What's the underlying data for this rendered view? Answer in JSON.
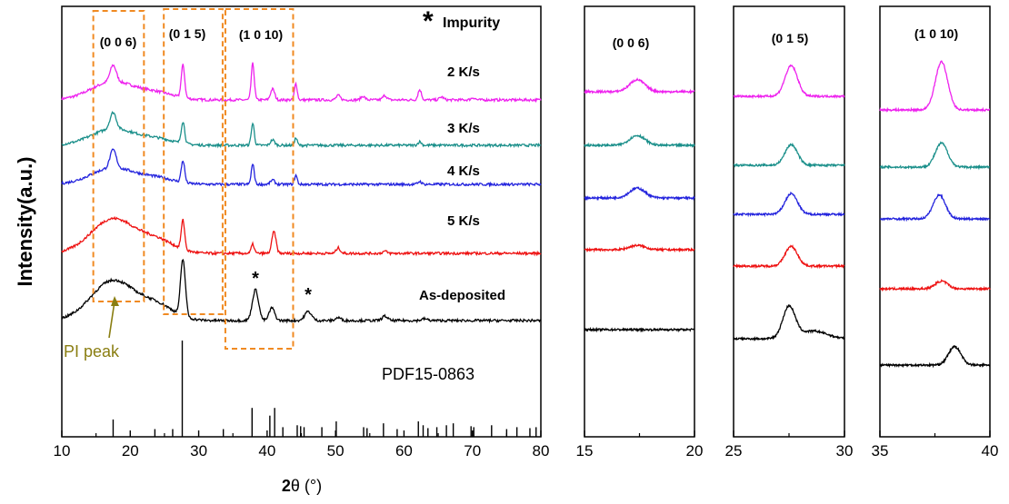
{
  "chart_data": [
    {
      "type": "line",
      "panel": "main",
      "xlabel": "2θ (°)",
      "ylabel": "Intensity(a.u.)",
      "xlim": [
        10,
        80
      ],
      "xticks": [
        "10",
        "20",
        "30",
        "40",
        "50",
        "60",
        "70",
        "80"
      ],
      "legend_text": "Impurity",
      "legend_symbol": "*",
      "peak_labels": [
        "(0 0 6)",
        "(0 1 5)",
        "(1 0 10)"
      ],
      "annotation": "PI peak",
      "impurity_marks": [
        {
          "x": 38.3,
          "text": "*"
        },
        {
          "x": 46.0,
          "text": "*"
        }
      ],
      "reference_label": "PDF15-0863",
      "series": [
        {
          "name": "2 K/s",
          "color": "#ee22ee",
          "baseline": 0.3,
          "broad": 0.5,
          "peaks": [
            [
              17.5,
              0.45,
              0.45
            ],
            [
              27.7,
              0.9,
              0.25
            ],
            [
              37.9,
              1.0,
              0.22
            ],
            [
              40.8,
              0.3,
              0.3
            ],
            [
              44.2,
              0.45,
              0.2
            ],
            [
              50.4,
              0.12,
              0.3
            ],
            [
              54.0,
              0.1,
              0.3
            ],
            [
              57.2,
              0.12,
              0.3
            ],
            [
              62.3,
              0.28,
              0.25
            ],
            [
              65.5,
              0.08,
              0.3
            ],
            [
              70.1,
              0.06,
              0.3
            ]
          ]
        },
        {
          "name": "3 K/s",
          "color": "#1a8f8a",
          "baseline": 0.3,
          "broad": 0.45,
          "peaks": [
            [
              17.5,
              0.45,
              0.45
            ],
            [
              27.7,
              0.6,
              0.25
            ],
            [
              37.9,
              0.6,
              0.22
            ],
            [
              40.8,
              0.15,
              0.3
            ],
            [
              44.2,
              0.2,
              0.2
            ],
            [
              62.3,
              0.1,
              0.25
            ]
          ]
        },
        {
          "name": "4 K/s",
          "color": "#2323dd",
          "baseline": 0.3,
          "broad": 0.45,
          "peaks": [
            [
              17.5,
              0.5,
              0.45
            ],
            [
              27.7,
              0.6,
              0.25
            ],
            [
              37.9,
              0.55,
              0.22
            ],
            [
              40.8,
              0.12,
              0.3
            ],
            [
              44.2,
              0.25,
              0.2
            ],
            [
              62.3,
              0.08,
              0.25
            ]
          ]
        },
        {
          "name": "5 K/s",
          "color": "#ee1111",
          "baseline": 0.3,
          "broad": 0.95,
          "peaks": [
            [
              27.7,
              0.8,
              0.25
            ],
            [
              37.9,
              0.25,
              0.22
            ],
            [
              41.0,
              0.6,
              0.3
            ],
            [
              50.4,
              0.15,
              0.3
            ],
            [
              57.2,
              0.06,
              0.3
            ]
          ]
        },
        {
          "name": "As-deposited",
          "color": "#000000",
          "baseline": 0.3,
          "broad": 1.1,
          "peaks": [
            [
              27.7,
              1.55,
              0.35
            ],
            [
              38.3,
              0.85,
              0.45
            ],
            [
              40.7,
              0.35,
              0.4
            ],
            [
              46.0,
              0.25,
              0.5
            ],
            [
              50.4,
              0.08,
              0.4
            ],
            [
              57.2,
              0.12,
              0.4
            ],
            [
              63.0,
              0.05,
              0.4
            ]
          ]
        }
      ],
      "reference_sticks": [
        [
          17.5,
          0.18
        ],
        [
          23.6,
          0.08
        ],
        [
          26.2,
          0.08
        ],
        [
          27.6,
          1.0
        ],
        [
          33.6,
          0.08
        ],
        [
          37.8,
          0.3
        ],
        [
          40.4,
          0.22
        ],
        [
          41.1,
          0.3
        ],
        [
          42.3,
          0.1
        ],
        [
          44.4,
          0.12
        ],
        [
          44.9,
          0.11
        ],
        [
          45.4,
          0.1
        ],
        [
          48.0,
          0.1
        ],
        [
          50.1,
          0.16
        ],
        [
          54.1,
          0.1
        ],
        [
          54.6,
          0.09
        ],
        [
          57.0,
          0.14
        ],
        [
          59.0,
          0.08
        ],
        [
          62.1,
          0.16
        ],
        [
          62.8,
          0.12
        ],
        [
          63.5,
          0.09
        ],
        [
          64.8,
          0.1
        ],
        [
          66.2,
          0.12
        ],
        [
          67.2,
          0.14
        ],
        [
          69.8,
          0.11
        ],
        [
          70.2,
          0.1
        ],
        [
          72.8,
          0.12
        ],
        [
          75.0,
          0.08
        ],
        [
          76.5,
          0.1
        ],
        [
          78.4,
          0.09
        ],
        [
          79.3,
          0.1
        ]
      ]
    },
    {
      "type": "line",
      "panel": "zoom-006",
      "title": "(0 0 6)",
      "xlim": [
        15,
        20
      ],
      "xticks": [
        "15",
        "20"
      ],
      "series": [
        {
          "name": "2 K/s",
          "color": "#ee22ee",
          "center": 17.4,
          "height": 0.55
        },
        {
          "name": "3 K/s",
          "color": "#1a8f8a",
          "center": 17.4,
          "height": 0.45
        },
        {
          "name": "4 K/s",
          "color": "#2323dd",
          "center": 17.4,
          "height": 0.45
        },
        {
          "name": "5 K/s",
          "color": "#ee1111",
          "center": 17.4,
          "height": 0.2
        },
        {
          "name": "As-deposited",
          "color": "#000000",
          "center": 17.4,
          "height": 0.0
        }
      ]
    },
    {
      "type": "line",
      "panel": "zoom-015",
      "title": "(0 1 5)",
      "xlim": [
        25,
        30
      ],
      "xticks": [
        "25",
        "30"
      ],
      "series": [
        {
          "name": "2 K/s",
          "color": "#ee22ee",
          "center": 27.6,
          "height": 1.4
        },
        {
          "name": "3 K/s",
          "color": "#1a8f8a",
          "center": 27.6,
          "height": 0.95
        },
        {
          "name": "4 K/s",
          "color": "#2323dd",
          "center": 27.6,
          "height": 0.95
        },
        {
          "name": "5 K/s",
          "color": "#ee1111",
          "center": 27.6,
          "height": 0.9
        },
        {
          "name": "As-deposited",
          "color": "#000000",
          "center": 27.5,
          "height": 1.45
        }
      ]
    },
    {
      "type": "line",
      "panel": "zoom-1010",
      "title": "(1 0 10)",
      "xlim": [
        35,
        40
      ],
      "xticks": [
        "35",
        "40"
      ],
      "series": [
        {
          "name": "2 K/s",
          "color": "#ee22ee",
          "center": 37.8,
          "height": 2.2
        },
        {
          "name": "3 K/s",
          "color": "#1a8f8a",
          "center": 37.8,
          "height": 1.1
        },
        {
          "name": "4 K/s",
          "color": "#2323dd",
          "center": 37.7,
          "height": 1.1
        },
        {
          "name": "5 K/s",
          "color": "#ee1111",
          "center": 37.8,
          "height": 0.35
        },
        {
          "name": "As-deposited",
          "color": "#000000",
          "center": 38.4,
          "height": 0.85
        }
      ]
    }
  ]
}
